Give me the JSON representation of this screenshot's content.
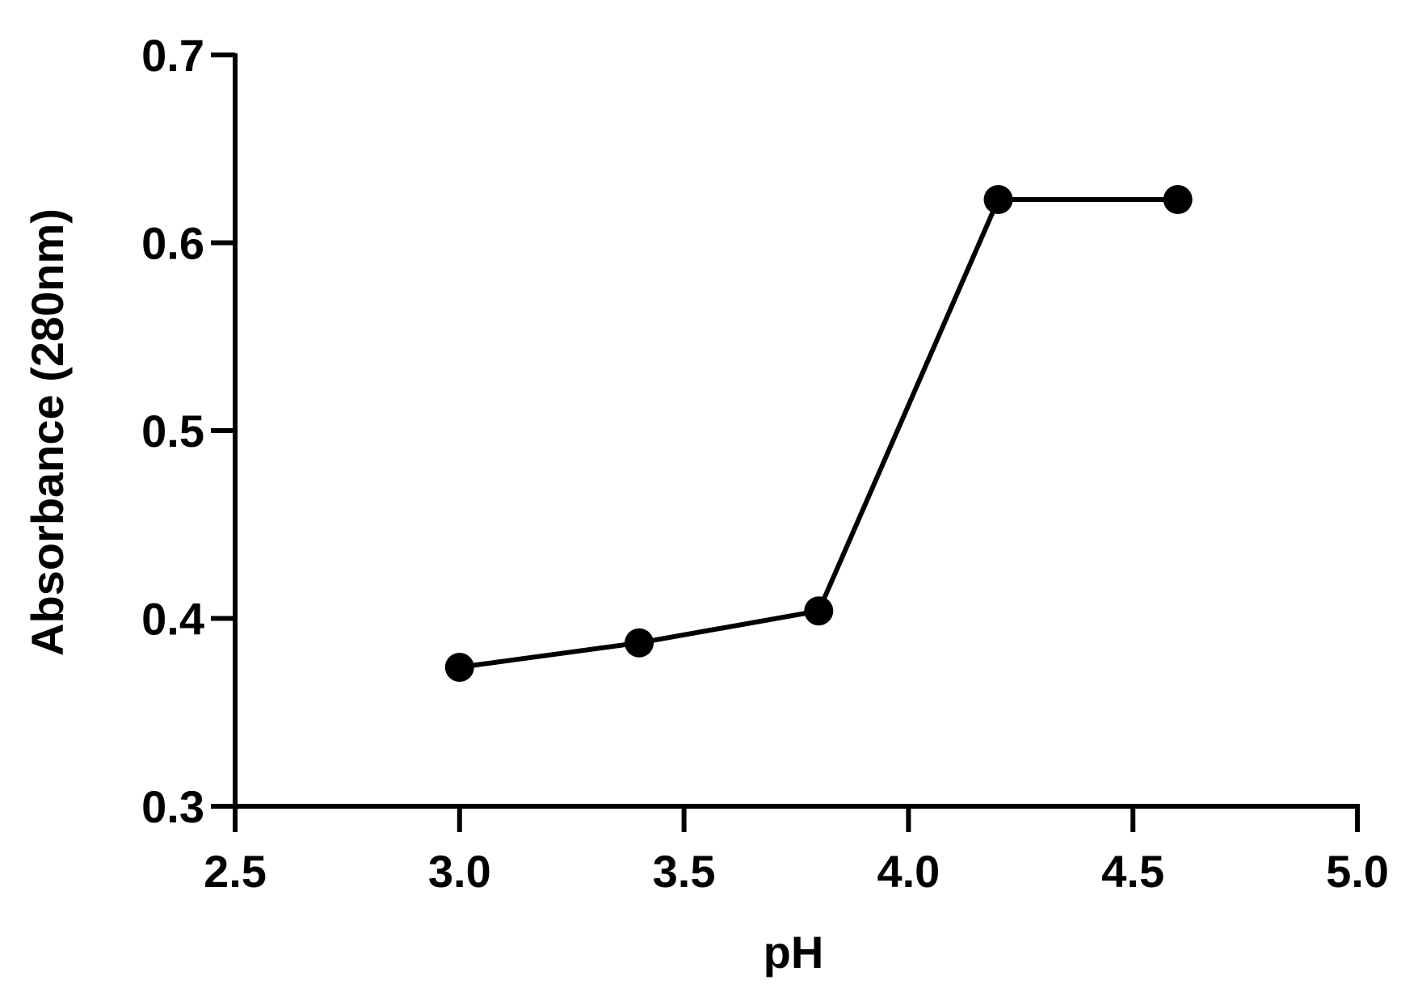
{
  "chart_data": {
    "type": "line",
    "title": "",
    "xlabel": "pH",
    "ylabel": "Absorbance (280nm)",
    "xlim": [
      2.5,
      5.0
    ],
    "ylim": [
      0.3,
      0.7
    ],
    "xticks": [
      "2.5",
      "3.0",
      "3.5",
      "4.0",
      "4.5",
      "5.0"
    ],
    "yticks": [
      "0.3",
      "0.4",
      "0.5",
      "0.6",
      "0.7"
    ],
    "grid": false,
    "series": [
      {
        "x": [
          3.0,
          3.4,
          3.8,
          4.2,
          4.6
        ],
        "y": [
          0.374,
          0.387,
          0.404,
          0.623,
          0.623
        ],
        "color": "#000000",
        "marker": "circle"
      }
    ]
  }
}
